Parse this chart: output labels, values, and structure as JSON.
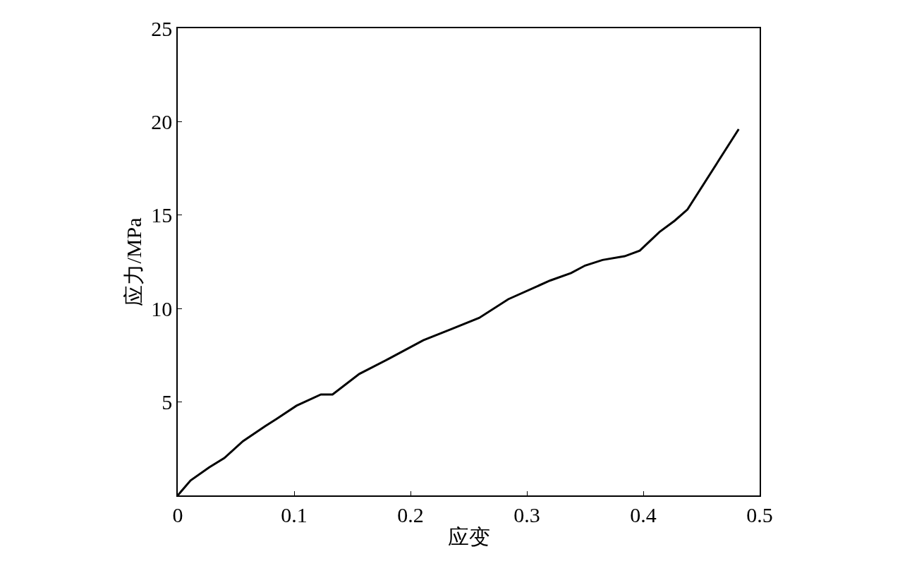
{
  "chart_data": {
    "type": "line",
    "xlabel": "应变",
    "ylabel": "应力/MPa",
    "x": [
      0,
      0.011,
      0.027,
      0.04,
      0.056,
      0.075,
      0.085,
      0.102,
      0.123,
      0.133,
      0.156,
      0.181,
      0.211,
      0.235,
      0.259,
      0.284,
      0.32,
      0.338,
      0.35,
      0.365,
      0.384,
      0.397,
      0.414,
      0.427,
      0.438,
      0.482
    ],
    "series": [
      {
        "color": "#000000",
        "values": [
          0,
          0.8,
          1.5,
          2.0,
          2.9,
          3.7,
          4.1,
          4.8,
          5.4,
          5.4,
          6.5,
          7.3,
          8.3,
          8.9,
          9.5,
          10.5,
          11.5,
          11.9,
          12.3,
          12.6,
          12.8,
          13.1,
          14.1,
          14.7,
          15.3,
          19.6
        ]
      }
    ],
    "xlim": [
      0,
      0.5
    ],
    "xticks": [
      0,
      0.1,
      0.2,
      0.3,
      0.4,
      0.5
    ],
    "ylim": [
      0,
      25
    ],
    "yticks": [
      5,
      10,
      15,
      20,
      25
    ],
    "marker": "none",
    "line_style": "solid"
  }
}
